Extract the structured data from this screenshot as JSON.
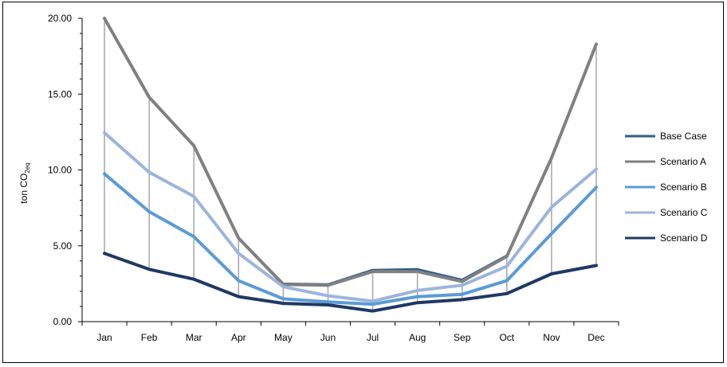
{
  "chart_data": {
    "type": "line",
    "title": "",
    "xlabel": "",
    "ylabel_main": "ton CO",
    "ylabel_sub": "2eq",
    "categories": [
      "Jan",
      "Feb",
      "Mar",
      "Apr",
      "May",
      "Jun",
      "Jul",
      "Aug",
      "Sep",
      "Oct",
      "Nov",
      "Dec"
    ],
    "ylim": [
      0,
      20
    ],
    "yticks": [
      "0.00",
      "5.00",
      "10.00",
      "15.00",
      "20.00"
    ],
    "legend_position": "right",
    "series": [
      {
        "name": "Base Case",
        "color": "#2f5d8c",
        "width": 3,
        "values": [
          20.0,
          14.8,
          11.6,
          5.5,
          2.5,
          2.45,
          3.4,
          3.45,
          2.75,
          4.35,
          10.8,
          18.3
        ]
      },
      {
        "name": "Scenario A",
        "color": "#808080",
        "width": 4,
        "values": [
          20.0,
          14.8,
          11.6,
          5.5,
          2.45,
          2.4,
          3.3,
          3.3,
          2.65,
          4.3,
          10.8,
          18.3
        ]
      },
      {
        "name": "Scenario B",
        "color": "#5b9bd5",
        "width": 4,
        "values": [
          9.75,
          7.25,
          5.6,
          2.7,
          1.5,
          1.3,
          1.15,
          1.65,
          1.8,
          2.7,
          5.8,
          8.85
        ]
      },
      {
        "name": "Scenario C",
        "color": "#9cb4dd",
        "width": 4,
        "values": [
          12.45,
          9.85,
          8.25,
          4.5,
          2.3,
          1.7,
          1.35,
          2.05,
          2.4,
          3.65,
          7.55,
          10.05
        ]
      },
      {
        "name": "Scenario D",
        "color": "#1f3864",
        "width": 4,
        "values": [
          4.5,
          3.45,
          2.8,
          1.65,
          1.2,
          1.1,
          0.7,
          1.25,
          1.45,
          1.85,
          3.15,
          3.7
        ]
      }
    ]
  }
}
